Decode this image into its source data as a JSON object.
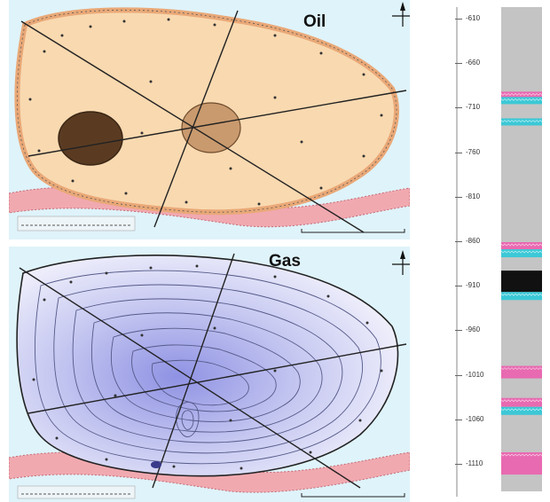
{
  "maps": [
    {
      "title": "Oil",
      "fluid": "oil",
      "colors": {
        "background": "#dff3fa",
        "field": "#f9d9b0",
        "field_edge": "#e9a877",
        "aquifer_band": "#f1a9b0",
        "dark_zone": "#5a3b22",
        "light_zone": "#c99a6e"
      }
    },
    {
      "title": "Gas",
      "fluid": "gas",
      "colors": {
        "background": "#dff3fa",
        "field": "#dcdcf5",
        "field_core": "#8f92e3",
        "contours": "#555a88",
        "aquifer_band": "#f1a9b0"
      }
    }
  ],
  "depth_log": {
    "ticks": [
      "-610",
      "-660",
      "-710",
      "-760",
      "-810",
      "-860",
      "-910",
      "-960",
      "-1010",
      "-1060",
      "-1110"
    ],
    "colors": {
      "column": "#c4c4c4",
      "water": "#3cc8d6",
      "oil_gas": "#e86ab1",
      "coal": "#111111"
    },
    "intervals": [
      {
        "type": "oil_gas",
        "top": -692,
        "bottom": -699
      },
      {
        "type": "water",
        "top": -698,
        "bottom": -706
      },
      {
        "type": "water",
        "top": -722,
        "bottom": -730
      },
      {
        "type": "oil_gas",
        "top": -861,
        "bottom": -869
      },
      {
        "type": "water",
        "top": -869,
        "bottom": -878
      },
      {
        "type": "coal",
        "top": -893,
        "bottom": -917
      },
      {
        "type": "water",
        "top": -917,
        "bottom": -926
      },
      {
        "type": "oil_gas",
        "top": -1000,
        "bottom": -1014
      },
      {
        "type": "oil_gas",
        "top": -1036,
        "bottom": -1046
      },
      {
        "type": "water",
        "top": -1046,
        "bottom": -1055
      },
      {
        "type": "oil_gas",
        "top": -1097,
        "bottom": -1122
      }
    ]
  }
}
